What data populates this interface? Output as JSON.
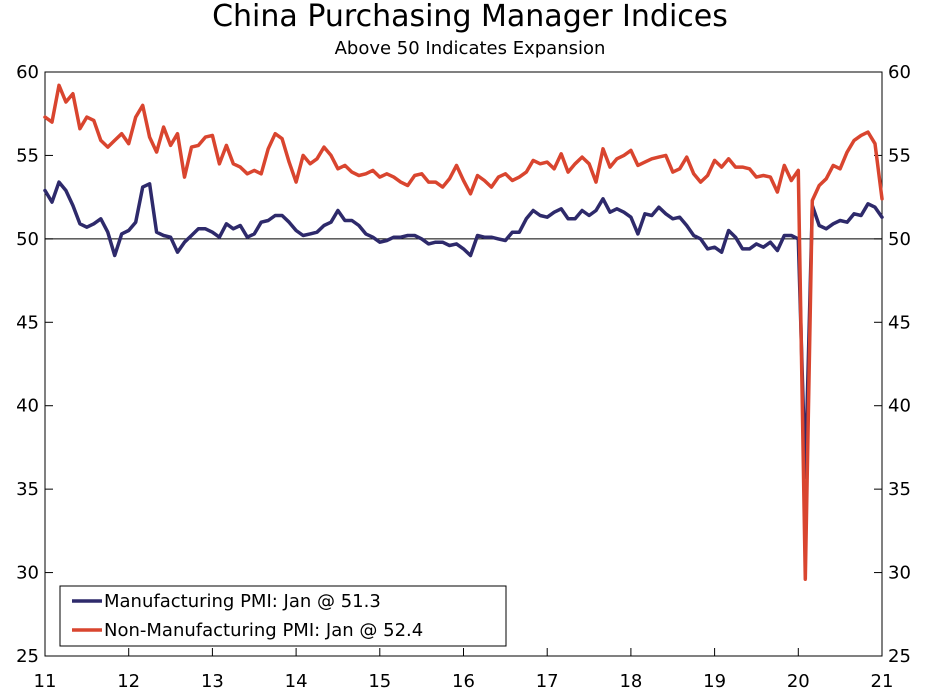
{
  "chart_data": {
    "type": "line",
    "title": "China Purchasing Manager Indices",
    "subtitle": "Above 50 Indicates Expansion",
    "ylim": [
      25,
      60
    ],
    "y_ticks": [
      25,
      30,
      35,
      40,
      45,
      50,
      55,
      60
    ],
    "y_tick_labels": [
      "25",
      "30",
      "35",
      "40",
      "45",
      "50",
      "55",
      "60"
    ],
    "x_range": [
      2011,
      2021
    ],
    "x_ticks": [
      2011,
      2012,
      2013,
      2014,
      2015,
      2016,
      2017,
      2018,
      2019,
      2020,
      2021
    ],
    "x_tick_labels": [
      "11",
      "12",
      "13",
      "14",
      "15",
      "16",
      "17",
      "18",
      "19",
      "20",
      "21"
    ],
    "reference_line": 50,
    "legend_position": "bottom-left",
    "series": [
      {
        "name": "Manufacturing PMI: Jan @ 51.3",
        "color": "#2e2a6b",
        "start": "2011-01",
        "values": [
          52.9,
          52.2,
          53.4,
          52.9,
          52.0,
          50.9,
          50.7,
          50.9,
          51.2,
          50.4,
          49.0,
          50.3,
          50.5,
          51.0,
          53.1,
          53.3,
          50.4,
          50.2,
          50.1,
          49.2,
          49.8,
          50.2,
          50.6,
          50.6,
          50.4,
          50.1,
          50.9,
          50.6,
          50.8,
          50.1,
          50.3,
          51.0,
          51.1,
          51.4,
          51.4,
          51.0,
          50.5,
          50.2,
          50.3,
          50.4,
          50.8,
          51.0,
          51.7,
          51.1,
          51.1,
          50.8,
          50.3,
          50.1,
          49.8,
          49.9,
          50.1,
          50.1,
          50.2,
          50.2,
          50.0,
          49.7,
          49.8,
          49.8,
          49.6,
          49.7,
          49.4,
          49.0,
          50.2,
          50.1,
          50.1,
          50.0,
          49.9,
          50.4,
          50.4,
          51.2,
          51.7,
          51.4,
          51.3,
          51.6,
          51.8,
          51.2,
          51.2,
          51.7,
          51.4,
          51.7,
          52.4,
          51.6,
          51.8,
          51.6,
          51.3,
          50.3,
          51.5,
          51.4,
          51.9,
          51.5,
          51.2,
          51.3,
          50.8,
          50.2,
          50.0,
          49.4,
          49.5,
          49.2,
          50.5,
          50.1,
          49.4,
          49.4,
          49.7,
          49.5,
          49.8,
          49.3,
          50.2,
          50.2,
          50.0,
          35.7,
          52.0,
          50.8,
          50.6,
          50.9,
          51.1,
          51.0,
          51.5,
          51.4,
          52.1,
          51.9,
          51.3
        ]
      },
      {
        "name": "Non-Manufacturing PMI: Jan @ 52.4",
        "color": "#d9452f",
        "start": "2011-01",
        "values": [
          57.3,
          57.0,
          59.2,
          58.2,
          58.7,
          56.6,
          57.3,
          57.1,
          55.9,
          55.5,
          55.9,
          56.3,
          55.7,
          57.3,
          58.0,
          56.1,
          55.2,
          56.7,
          55.6,
          56.3,
          53.7,
          55.5,
          55.6,
          56.1,
          56.2,
          54.5,
          55.6,
          54.5,
          54.3,
          53.9,
          54.1,
          53.9,
          55.4,
          56.3,
          56.0,
          54.6,
          53.4,
          55.0,
          54.5,
          54.8,
          55.5,
          55.0,
          54.2,
          54.4,
          54.0,
          53.8,
          53.9,
          54.1,
          53.7,
          53.9,
          53.7,
          53.4,
          53.2,
          53.8,
          53.9,
          53.4,
          53.4,
          53.1,
          53.6,
          54.4,
          53.5,
          52.7,
          53.8,
          53.5,
          53.1,
          53.7,
          53.9,
          53.5,
          53.7,
          54.0,
          54.7,
          54.5,
          54.6,
          54.2,
          55.1,
          54.0,
          54.5,
          54.9,
          54.5,
          53.4,
          55.4,
          54.3,
          54.8,
          55.0,
          55.3,
          54.4,
          54.6,
          54.8,
          54.9,
          55.0,
          54.0,
          54.2,
          54.9,
          53.9,
          53.4,
          53.8,
          54.7,
          54.3,
          54.8,
          54.3,
          54.3,
          54.2,
          53.7,
          53.8,
          53.7,
          52.8,
          54.4,
          53.5,
          54.1,
          29.6,
          52.3,
          53.2,
          53.6,
          54.4,
          54.2,
          55.2,
          55.9,
          56.2,
          56.4,
          55.7,
          52.4
        ]
      }
    ]
  }
}
